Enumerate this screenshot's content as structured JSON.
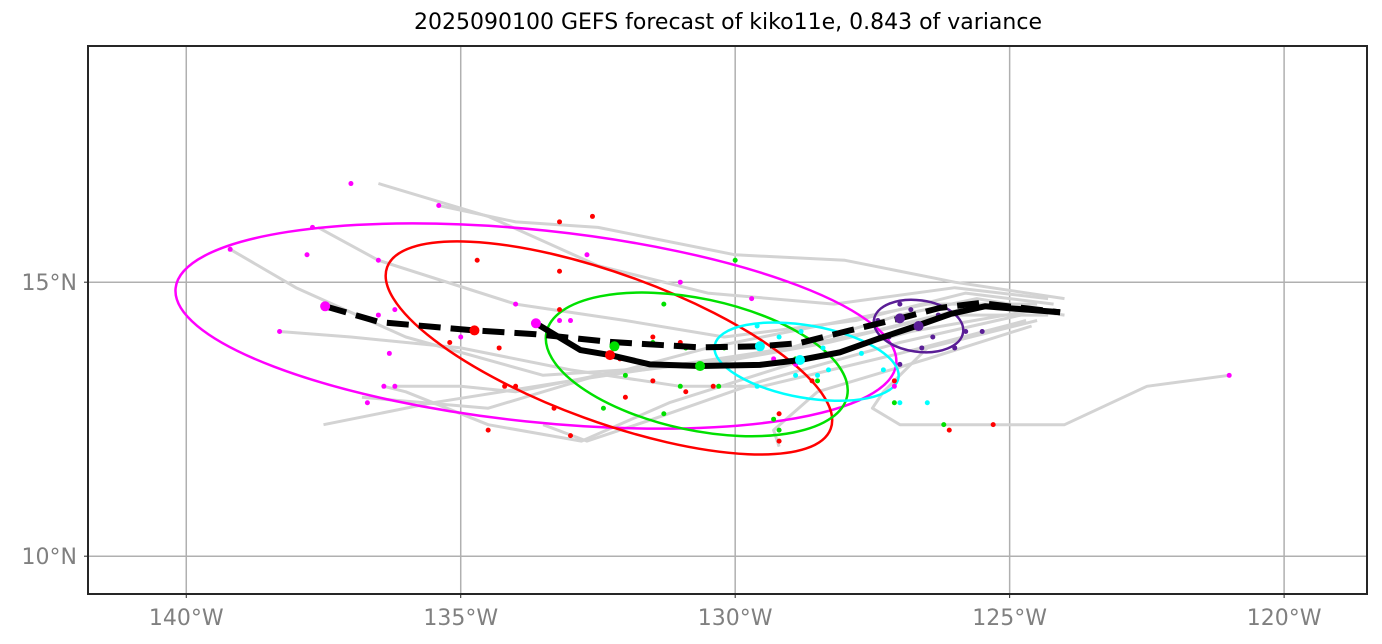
{
  "chart_data": {
    "type": "map-track",
    "title": "2025090100 GEFS forecast of kiko11e, 0.843 of variance",
    "xlim": [
      -141.79,
      -118.49
    ],
    "ylim": [
      9.31,
      19.31
    ],
    "grid": true,
    "x_ticks": [
      {
        "value": -140,
        "label": "140°W"
      },
      {
        "value": -135,
        "label": "135°W"
      },
      {
        "value": -130,
        "label": "130°W"
      },
      {
        "value": -125,
        "label": "125°W"
      },
      {
        "value": -120,
        "label": "120°W"
      }
    ],
    "y_ticks": [
      {
        "value": 15,
        "label": "15°N"
      },
      {
        "value": 10,
        "label": "10°N"
      }
    ],
    "colors": {
      "ensemble": "#d3d3d3",
      "track": "#000000",
      "magenta": "#ff00ff",
      "red": "#ff0000",
      "green": "#00e000",
      "cyan": "#00ffff",
      "purple": "#5a1e96",
      "grid": "#b0b0b0"
    },
    "mean_track_dashed": [
      [
        -137.47,
        14.56
      ],
      [
        -136.47,
        14.27
      ],
      [
        -134.75,
        14.12
      ],
      [
        -133.63,
        14.05
      ],
      [
        -132.28,
        13.91
      ],
      [
        -130.64,
        13.81
      ],
      [
        -129.55,
        13.83
      ],
      [
        -128.82,
        13.89
      ],
      [
        -127.91,
        14.12
      ],
      [
        -127.0,
        14.34
      ],
      [
        -126.27,
        14.53
      ],
      [
        -125.54,
        14.62
      ],
      [
        -124.08,
        14.45
      ]
    ],
    "track_solid": [
      [
        -133.63,
        14.25
      ],
      [
        -132.82,
        13.76
      ],
      [
        -132.28,
        13.67
      ],
      [
        -131.55,
        13.5
      ],
      [
        -130.64,
        13.47
      ],
      [
        -129.55,
        13.49
      ],
      [
        -128.82,
        13.58
      ],
      [
        -128.09,
        13.72
      ],
      [
        -127.36,
        13.98
      ],
      [
        -126.7,
        14.2
      ],
      [
        -126.08,
        14.42
      ],
      [
        -125.45,
        14.56
      ],
      [
        -124.08,
        14.45
      ]
    ],
    "ensemble_tracks": [
      [
        [
          -124.4,
          14.5
        ],
        [
          -125.6,
          14.7
        ],
        [
          -127.0,
          14.4
        ],
        [
          -129.0,
          13.8
        ],
        [
          -131.0,
          13.5
        ],
        [
          -133.0,
          13.2
        ],
        [
          -135.5,
          12.8
        ],
        [
          -137.5,
          12.4
        ]
      ],
      [
        [
          -124.0,
          14.4
        ],
        [
          -125.5,
          14.6
        ],
        [
          -127.5,
          14.1
        ],
        [
          -130.0,
          13.6
        ],
        [
          -132.5,
          13.3
        ],
        [
          -134.5,
          12.7
        ],
        [
          -136.8,
          12.9
        ]
      ],
      [
        [
          -124.2,
          14.6
        ],
        [
          -125.8,
          14.8
        ],
        [
          -127.8,
          14.3
        ],
        [
          -130.2,
          14.0
        ],
        [
          -132.0,
          14.3
        ],
        [
          -134.0,
          14.6
        ],
        [
          -136.5,
          15.4
        ],
        [
          -137.6,
          16.0
        ]
      ],
      [
        [
          -124.3,
          14.7
        ],
        [
          -126.0,
          14.9
        ],
        [
          -128.2,
          14.6
        ],
        [
          -130.5,
          14.8
        ],
        [
          -132.5,
          15.3
        ],
        [
          -134.5,
          16.2
        ],
        [
          -136.5,
          16.8
        ]
      ],
      [
        [
          -124.0,
          14.7
        ],
        [
          -126.0,
          15.0
        ],
        [
          -128.0,
          15.4
        ],
        [
          -130.0,
          15.5
        ],
        [
          -132.5,
          16.0
        ],
        [
          -134.0,
          16.1
        ],
        [
          -135.4,
          16.4
        ]
      ],
      [
        [
          -124.5,
          14.3
        ],
        [
          -126.5,
          13.8
        ],
        [
          -127.3,
          13.0
        ],
        [
          -127.5,
          12.7
        ],
        [
          -127.0,
          12.4
        ],
        [
          -125.3,
          12.4
        ],
        [
          -124.0,
          12.4
        ],
        [
          -122.5,
          13.1
        ],
        [
          -121.0,
          13.3
        ]
      ],
      [
        [
          -124.6,
          14.2
        ],
        [
          -126.5,
          13.6
        ],
        [
          -128.5,
          13.0
        ],
        [
          -129.3,
          12.3
        ],
        [
          -129.2,
          12.0
        ]
      ],
      [
        [
          -124.8,
          14.4
        ],
        [
          -127.0,
          13.9
        ],
        [
          -129.5,
          13.2
        ],
        [
          -131.5,
          12.5
        ],
        [
          -132.7,
          12.1
        ],
        [
          -133.5,
          12.4
        ]
      ],
      [
        [
          -124.5,
          14.5
        ],
        [
          -126.8,
          14.1
        ],
        [
          -129.0,
          13.5
        ],
        [
          -131.2,
          12.8
        ],
        [
          -132.8,
          12.1
        ],
        [
          -134.5,
          12.4
        ],
        [
          -136.0,
          13.0
        ],
        [
          -136.4,
          13.1
        ]
      ],
      [
        [
          -124.7,
          14.3
        ],
        [
          -127.0,
          13.7
        ],
        [
          -129.5,
          13.1
        ],
        [
          -131.0,
          13.1
        ],
        [
          -133.0,
          13.4
        ],
        [
          -135.0,
          13.8
        ],
        [
          -137.0,
          14.0
        ],
        [
          -138.3,
          14.1
        ]
      ],
      [
        [
          -124.5,
          14.6
        ],
        [
          -126.5,
          14.6
        ],
        [
          -128.5,
          14.2
        ],
        [
          -130.5,
          13.8
        ],
        [
          -132.0,
          13.4
        ],
        [
          -134.0,
          13.0
        ],
        [
          -135.0,
          13.1
        ],
        [
          -136.2,
          13.1
        ]
      ],
      [
        [
          -124.3,
          14.4
        ],
        [
          -126.2,
          14.4
        ],
        [
          -128.3,
          13.9
        ],
        [
          -130.5,
          13.5
        ],
        [
          -133.5,
          13.3
        ],
        [
          -136.0,
          14.0
        ],
        [
          -138.0,
          14.9
        ],
        [
          -139.2,
          15.6
        ]
      ]
    ],
    "ensemble_points": {
      "magenta": [
        [
          -137.0,
          16.8
        ],
        [
          -135.4,
          16.4
        ],
        [
          -137.7,
          16.0
        ],
        [
          -139.2,
          15.6
        ],
        [
          -137.8,
          15.5
        ],
        [
          -136.5,
          15.4
        ],
        [
          -134.0,
          14.6
        ],
        [
          -136.2,
          14.5
        ],
        [
          -136.5,
          14.4
        ],
        [
          -133.0,
          14.3
        ],
        [
          -135.0,
          14.0
        ],
        [
          -133.2,
          14.3
        ],
        [
          -136.3,
          13.7
        ],
        [
          -138.3,
          14.1
        ],
        [
          -136.4,
          13.1
        ],
        [
          -136.2,
          13.1
        ],
        [
          -136.7,
          12.8
        ],
        [
          -132.7,
          15.5
        ],
        [
          -131.0,
          15.0
        ],
        [
          -129.7,
          14.7
        ],
        [
          -121.0,
          13.3
        ],
        [
          -127.1,
          13.1
        ],
        [
          -128.9,
          13.5
        ],
        [
          -129.3,
          13.6
        ]
      ],
      "red": [
        [
          -132.6,
          16.2
        ],
        [
          -133.2,
          16.1
        ],
        [
          -134.7,
          15.4
        ],
        [
          -133.2,
          15.2
        ],
        [
          -135.2,
          13.9
        ],
        [
          -133.2,
          14.5
        ],
        [
          -134.3,
          13.8
        ],
        [
          -131.5,
          14.0
        ],
        [
          -132.1,
          13.6
        ],
        [
          -131.0,
          13.9
        ],
        [
          -130.9,
          13.0
        ],
        [
          -132.0,
          12.9
        ],
        [
          -133.3,
          12.7
        ],
        [
          -134.5,
          12.3
        ],
        [
          -133.0,
          12.2
        ],
        [
          -129.2,
          12.1
        ],
        [
          -126.1,
          12.3
        ],
        [
          -125.3,
          12.4
        ],
        [
          -128.6,
          13.2
        ],
        [
          -127.1,
          13.2
        ],
        [
          -129.2,
          12.6
        ],
        [
          -130.4,
          13.1
        ],
        [
          -131.5,
          13.2
        ],
        [
          -134.2,
          13.1
        ],
        [
          -134.0,
          13.1
        ]
      ],
      "green": [
        [
          -130.0,
          15.4
        ],
        [
          -131.3,
          14.6
        ],
        [
          -131.5,
          13.9
        ],
        [
          -132.0,
          13.3
        ],
        [
          -131.3,
          12.6
        ],
        [
          -132.4,
          12.7
        ],
        [
          -130.2,
          13.8
        ],
        [
          -130.3,
          13.1
        ],
        [
          -129.3,
          12.5
        ],
        [
          -128.9,
          13.6
        ],
        [
          -128.5,
          13.2
        ],
        [
          -127.1,
          12.8
        ],
        [
          -126.2,
          12.4
        ],
        [
          -129.2,
          12.3
        ],
        [
          -130.9,
          13.8
        ],
        [
          -131.0,
          13.1
        ]
      ],
      "cyan": [
        [
          -129.6,
          14.2
        ],
        [
          -129.2,
          14.0
        ],
        [
          -128.8,
          14.1
        ],
        [
          -128.4,
          13.8
        ],
        [
          -128.5,
          13.3
        ],
        [
          -128.9,
          13.3
        ],
        [
          -129.6,
          13.1
        ],
        [
          -128.3,
          13.4
        ],
        [
          -127.0,
          12.8
        ],
        [
          -126.5,
          12.8
        ],
        [
          -127.7,
          13.7
        ],
        [
          -127.3,
          13.4
        ]
      ],
      "purple": [
        [
          -127.0,
          14.6
        ],
        [
          -126.8,
          14.5
        ],
        [
          -127.4,
          14.3
        ],
        [
          -126.3,
          14.4
        ],
        [
          -126.6,
          13.8
        ],
        [
          -127.0,
          13.5
        ],
        [
          -126.0,
          13.8
        ],
        [
          -125.8,
          14.1
        ],
        [
          -125.5,
          14.1
        ],
        [
          -127.2,
          14.0
        ],
        [
          -126.4,
          14.0
        ]
      ]
    },
    "time_markers": [
      {
        "color": "magenta",
        "points": [
          [
            -137.47,
            14.56
          ],
          [
            -133.63,
            14.25
          ]
        ]
      },
      {
        "color": "red",
        "points": [
          [
            -134.75,
            14.12
          ],
          [
            -132.28,
            13.67
          ]
        ]
      },
      {
        "color": "green",
        "points": [
          [
            -132.2,
            13.83
          ],
          [
            -130.64,
            13.47
          ]
        ]
      },
      {
        "color": "cyan",
        "points": [
          [
            -129.55,
            13.83
          ],
          [
            -128.82,
            13.58
          ]
        ]
      },
      {
        "color": "purple",
        "points": [
          [
            -127.0,
            14.34
          ],
          [
            -126.66,
            14.2
          ]
        ]
      }
    ],
    "ellipses": [
      {
        "color": "magenta",
        "center": [
          -133.63,
          14.2
        ],
        "semi_major_deg": 6.6,
        "semi_minor_deg": 1.75,
        "angle_deg": 6
      },
      {
        "color": "red",
        "center": [
          -132.3,
          13.8
        ],
        "semi_major_deg": 4.3,
        "semi_minor_deg": 1.35,
        "angle_deg": 20
      },
      {
        "color": "green",
        "center": [
          -130.7,
          13.5
        ],
        "semi_major_deg": 2.8,
        "semi_minor_deg": 1.2,
        "angle_deg": 12
      },
      {
        "color": "cyan",
        "center": [
          -128.7,
          13.55
        ],
        "semi_major_deg": 1.7,
        "semi_minor_deg": 0.66,
        "angle_deg": 10
      },
      {
        "color": "purple",
        "center": [
          -126.66,
          14.2
        ],
        "semi_major_deg": 0.82,
        "semi_minor_deg": 0.47,
        "angle_deg": 8
      }
    ]
  }
}
